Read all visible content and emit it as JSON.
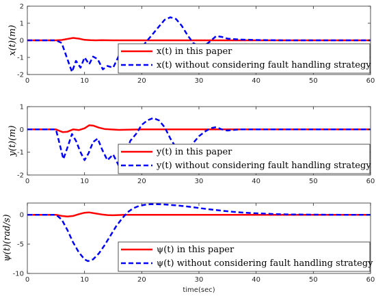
{
  "colors": {
    "paper": "#ff0000",
    "nofault": "#0000ff",
    "axis": "#262626"
  },
  "chart_data": [
    {
      "type": "line",
      "xlabel": "",
      "ylabel": "x(t)(m)",
      "xlim": [
        0,
        60
      ],
      "ylim": [
        -2,
        2
      ],
      "xticks": [
        0,
        10,
        20,
        30,
        40,
        50,
        60
      ],
      "yticks": [
        -2,
        -1,
        0,
        1,
        2
      ],
      "grid": false,
      "legend_position": "bottom-right",
      "series": [
        {
          "name": "x(t) in this paper",
          "style": "solid",
          "x": [
            0,
            5,
            6,
            7,
            8,
            9,
            10,
            11,
            12,
            13,
            15,
            60
          ],
          "y": [
            0,
            0,
            0.02,
            0.08,
            0.14,
            0.1,
            0.03,
            0.01,
            0.0,
            0.01,
            0.0,
            0.0
          ]
        },
        {
          "name": "x(t) without considering fault handling strategy",
          "style": "dashed",
          "x": [
            0,
            5,
            6,
            7,
            7.8,
            8.5,
            9.3,
            10,
            10.8,
            11.5,
            12.3,
            13.2,
            14,
            15,
            16,
            17,
            18,
            19,
            20,
            21,
            22,
            23,
            24,
            25,
            26,
            27,
            28,
            29,
            30,
            31,
            32,
            33,
            34,
            35,
            37,
            40,
            45,
            60
          ],
          "y": [
            0,
            0,
            -0.15,
            -1.1,
            -1.85,
            -1.2,
            -1.6,
            -1.0,
            -1.4,
            -0.95,
            -1.1,
            -1.7,
            -1.5,
            -1.6,
            -0.9,
            -0.3,
            -0.9,
            -1.2,
            -0.4,
            0.0,
            0.4,
            0.8,
            1.2,
            1.35,
            1.25,
            0.85,
            0.3,
            -0.15,
            -0.35,
            -0.3,
            -0.05,
            0.25,
            0.2,
            0.1,
            0.05,
            0.02,
            0.0,
            0.0
          ]
        }
      ]
    },
    {
      "type": "line",
      "xlabel": "",
      "ylabel": "y(t)(m)",
      "xlim": [
        0,
        60
      ],
      "ylim": [
        -2,
        1
      ],
      "xticks": [
        0,
        10,
        20,
        30,
        40,
        50,
        60
      ],
      "yticks": [
        -2,
        -1,
        0,
        1
      ],
      "grid": false,
      "legend_position": "bottom-right",
      "series": [
        {
          "name": "y(t) in this paper",
          "style": "solid",
          "x": [
            0,
            5,
            5.5,
            6.2,
            7,
            8,
            9,
            10,
            10.8,
            11.5,
            12.5,
            13.5,
            14.5,
            16,
            20,
            60
          ],
          "y": [
            0,
            0,
            -0.05,
            -0.12,
            -0.1,
            0.0,
            -0.03,
            0.05,
            0.18,
            0.17,
            0.08,
            0.02,
            0.0,
            -0.02,
            0.0,
            0.0
          ]
        },
        {
          "name": "y(t) without considering fault handling strategy",
          "style": "dashed",
          "x": [
            0,
            5,
            5.6,
            6.3,
            7,
            7.8,
            8.5,
            9.3,
            10,
            10.7,
            11.5,
            12.3,
            13.1,
            14,
            15,
            16,
            17,
            18,
            19,
            20,
            21,
            22,
            23,
            24,
            25,
            26,
            27,
            28,
            29,
            30,
            31,
            32,
            33,
            34,
            35,
            37,
            40,
            45,
            60
          ],
          "y": [
            0,
            0,
            -0.6,
            -1.3,
            -0.8,
            -0.2,
            -0.5,
            -1.0,
            -1.35,
            -1.05,
            -0.55,
            -0.4,
            -0.9,
            -1.35,
            -1.1,
            -1.6,
            -1.2,
            -0.5,
            -0.2,
            0.2,
            0.4,
            0.5,
            0.4,
            0.1,
            -0.4,
            -0.8,
            -1.0,
            -0.9,
            -0.6,
            -0.3,
            -0.1,
            0.05,
            0.1,
            0.0,
            -0.05,
            0.0,
            0.0,
            0.0,
            0.0
          ]
        }
      ]
    },
    {
      "type": "line",
      "xlabel": "time(sec)",
      "ylabel": "ψ(t)(rad/s)",
      "xlim": [
        0,
        60
      ],
      "ylim": [
        -10,
        2
      ],
      "xticks": [
        0,
        10,
        20,
        30,
        40,
        50,
        60
      ],
      "yticks": [
        -10,
        -5,
        0
      ],
      "grid": false,
      "legend_position": "bottom-right",
      "series": [
        {
          "name": "ψ(t) in this paper",
          "style": "solid",
          "x": [
            0,
            5,
            6,
            7,
            8,
            9,
            10,
            10.8,
            12,
            13,
            14,
            15,
            17,
            20,
            60
          ],
          "y": [
            0,
            0,
            -0.2,
            -0.3,
            -0.2,
            0.1,
            0.35,
            0.4,
            0.2,
            0.05,
            -0.05,
            -0.08,
            -0.02,
            0.0,
            0.0
          ]
        },
        {
          "name": "ψ(t) without considering fault handling strategy",
          "style": "dashed",
          "x": [
            0,
            5,
            6,
            7,
            8,
            9,
            10,
            10.6,
            11.5,
            12.5,
            13.5,
            14.5,
            15.5,
            16.5,
            17.5,
            18.5,
            19.5,
            20.5,
            21.5,
            22.5,
            24,
            26,
            28,
            30,
            32,
            34,
            36,
            38,
            40,
            43,
            46,
            50,
            55,
            60
          ],
          "y": [
            0,
            0,
            -0.8,
            -2.6,
            -4.7,
            -6.4,
            -7.6,
            -7.9,
            -7.6,
            -6.6,
            -5.2,
            -3.6,
            -2.0,
            -0.7,
            0.4,
            1.1,
            1.5,
            1.7,
            1.8,
            1.8,
            1.75,
            1.6,
            1.4,
            1.15,
            0.9,
            0.7,
            0.5,
            0.35,
            0.25,
            0.12,
            0.05,
            0.02,
            0.0,
            0.0
          ]
        }
      ]
    }
  ]
}
